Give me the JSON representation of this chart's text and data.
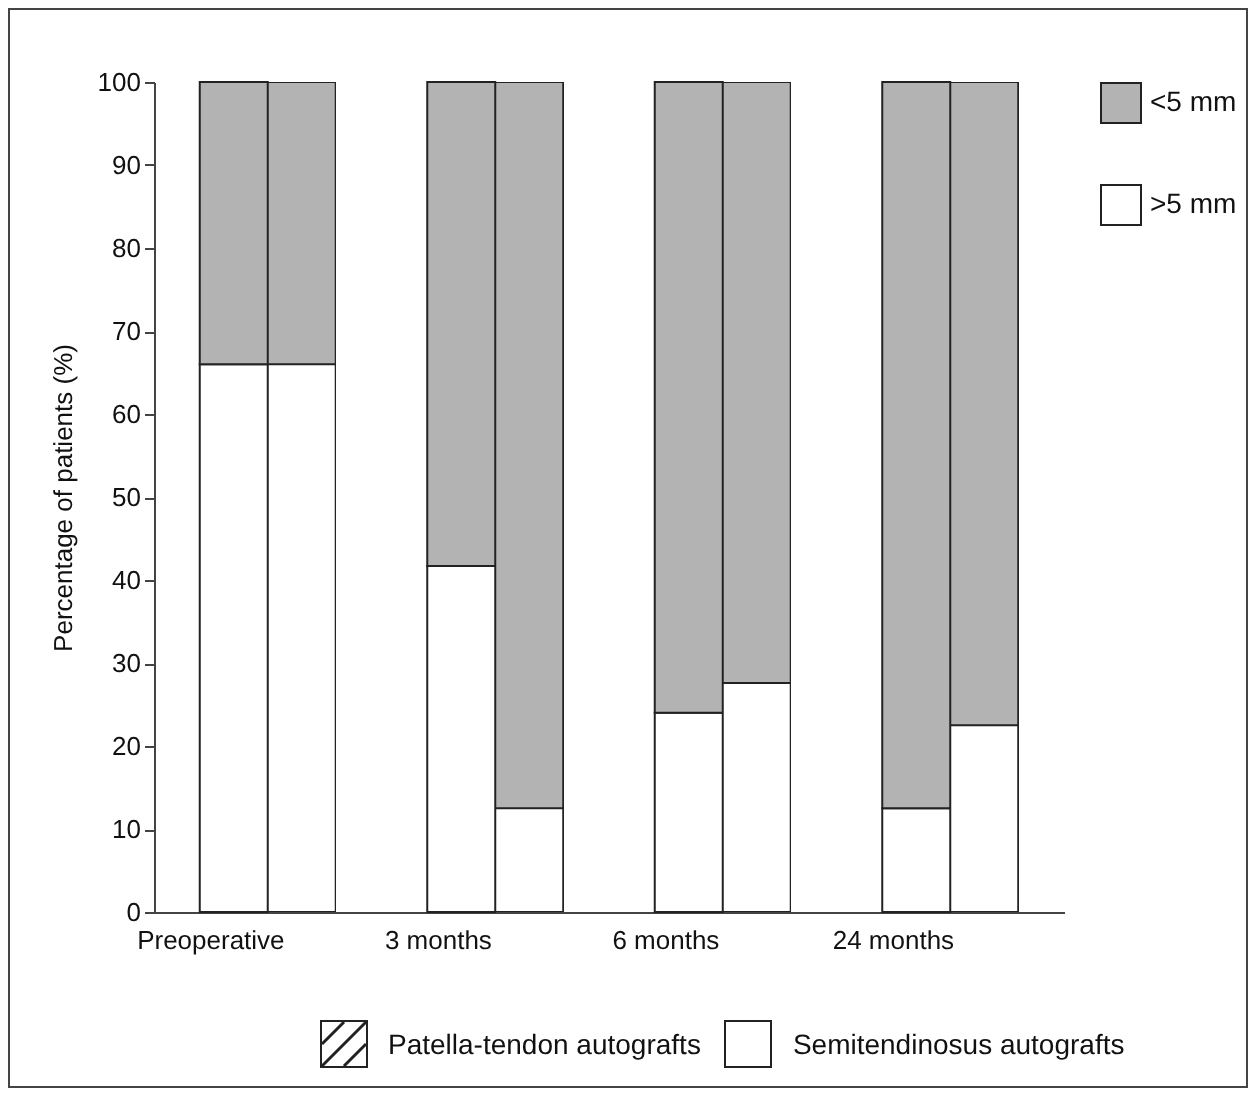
{
  "chart_data": {
    "type": "bar",
    "stacked": true,
    "ylabel": "Percentage of patients (%)",
    "categories": [
      "Preoperative",
      null,
      "3 months",
      null,
      "6 months",
      null,
      "24 months",
      null
    ],
    "series": [
      {
        "name": ">5 mm",
        "color": "#ffffff",
        "values": [
          66,
          66,
          41.7,
          12.5,
          24,
          27.6,
          12.5,
          22.5
        ]
      },
      {
        "name": "<5 mm",
        "color": "#b3b3b3",
        "values": [
          34,
          34,
          58.3,
          87.5,
          76,
          72.4,
          87.5,
          77.5
        ]
      }
    ],
    "ylim": [
      0,
      100
    ],
    "yticks": [
      0,
      10,
      20,
      30,
      40,
      50,
      60,
      70,
      80,
      90,
      100
    ],
    "grid": false,
    "legend": "top right",
    "annotations": [
      "Patella-tendon autografts",
      "Semitendinosus autografts"
    ]
  }
}
